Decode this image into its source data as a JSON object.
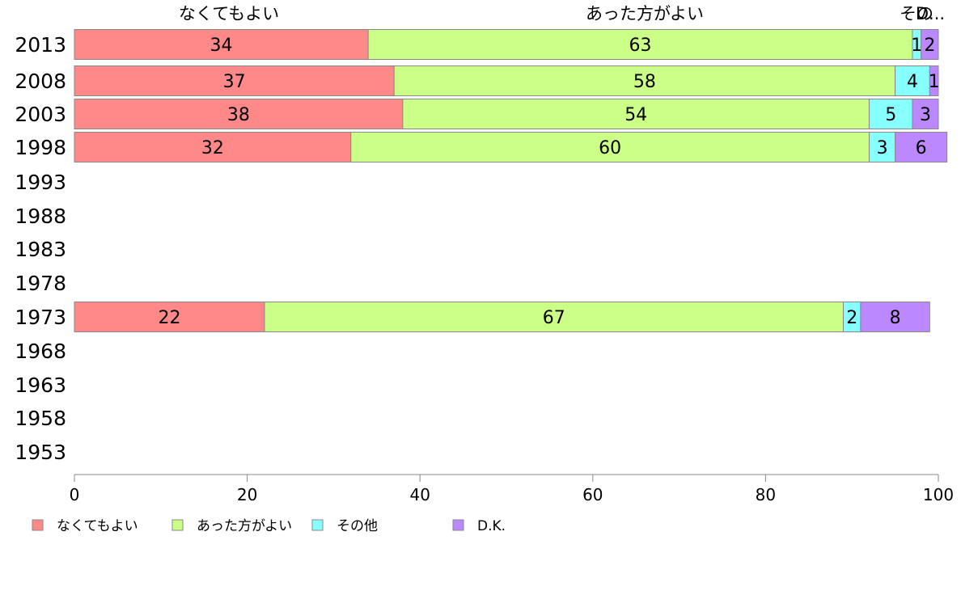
{
  "chart_data": {
    "type": "bar",
    "orientation": "horizontal",
    "stacked": true,
    "categories": [
      "2013",
      "2008",
      "2003",
      "1998",
      "1993",
      "1988",
      "1983",
      "1978",
      "1973",
      "1968",
      "1963",
      "1958",
      "1953"
    ],
    "series": [
      {
        "name": "なくてもよい",
        "color": "#ff8888",
        "values": [
          34,
          37,
          38,
          32,
          null,
          null,
          null,
          null,
          22,
          null,
          null,
          null,
          null
        ]
      },
      {
        "name": "あった方がよい",
        "color": "#ccff88",
        "values": [
          63,
          58,
          54,
          60,
          null,
          null,
          null,
          null,
          67,
          null,
          null,
          null,
          null
        ]
      },
      {
        "name": "その他",
        "color": "#88ffff",
        "values": [
          1,
          4,
          5,
          3,
          null,
          null,
          null,
          null,
          2,
          null,
          null,
          null,
          null
        ]
      },
      {
        "name": "D.K.",
        "color": "#bb88ff",
        "values": [
          2,
          1,
          3,
          6,
          null,
          null,
          null,
          null,
          8,
          null,
          null,
          null,
          null
        ]
      }
    ],
    "top_labels": [
      "なくてもよい",
      "あった方がよい",
      "その",
      "D..."
    ],
    "xlim": [
      0,
      100
    ],
    "xticks": [
      "0",
      "20",
      "40",
      "60",
      "80",
      "100"
    ],
    "grid": false,
    "legend_position": "bottom-left"
  }
}
